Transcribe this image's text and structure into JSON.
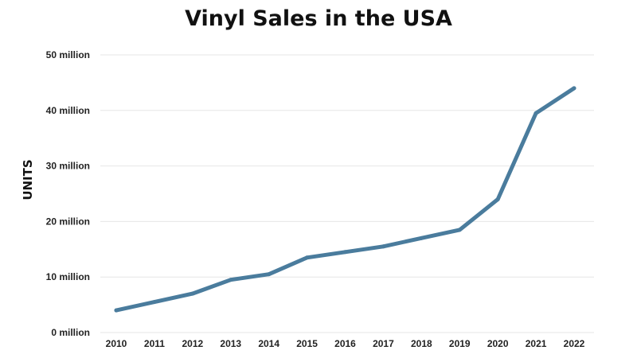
{
  "chart_data": {
    "type": "line",
    "title": "Vinyl Sales in the USA",
    "xlabel": "",
    "ylabel": "UNITS",
    "categories": [
      "2010",
      "2011",
      "2012",
      "2013",
      "2014",
      "2015",
      "2016",
      "2017",
      "2018",
      "2019",
      "2020",
      "2021",
      "2022"
    ],
    "series": [
      {
        "values": [
          4,
          5.5,
          7,
          9.5,
          10.5,
          13.5,
          14.5,
          15.5,
          17,
          18.5,
          24,
          39.5,
          44
        ]
      }
    ],
    "ylim": [
      0,
      50
    ],
    "yticks": [
      {
        "value": 0,
        "label": "0 million"
      },
      {
        "value": 10,
        "label": "10 million"
      },
      {
        "value": 20,
        "label": "20 million"
      },
      {
        "value": 30,
        "label": "30 million"
      },
      {
        "value": 40,
        "label": "40 million"
      },
      {
        "value": 50,
        "label": "50 million"
      }
    ],
    "grid": true,
    "line_color": "#4a7c9d",
    "grid_color": "#e6e6e6"
  }
}
